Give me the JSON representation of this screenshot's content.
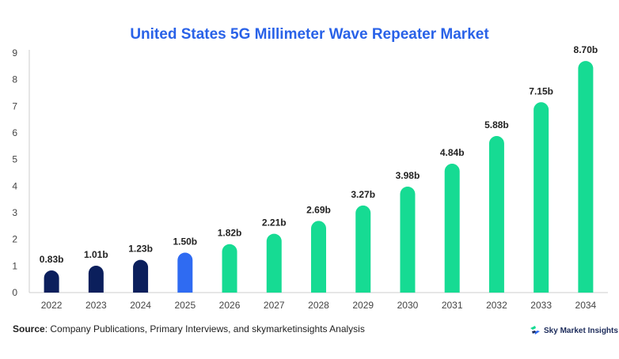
{
  "title": "United States 5G Millimeter Wave Repeater Market",
  "source": {
    "label": "Source",
    "text": ": Company Publications, Primary Interviews, and skymarketinsights Analysis"
  },
  "brand": {
    "name": "Sky Market Insights",
    "icon": "sky-market-insights-logo-icon"
  },
  "colors": {
    "historical": "#0b1f5c",
    "base_year": "#2f6bf2",
    "forecast": "#16db93",
    "title": "#2962e8"
  },
  "chart_data": {
    "type": "bar",
    "title": "United States 5G Millimeter Wave Repeater Market",
    "xlabel": "",
    "ylabel": "",
    "ylim": [
      0,
      9
    ],
    "yticks": [
      "0",
      "1",
      "2",
      "3",
      "4",
      "5",
      "6",
      "7",
      "8",
      "9"
    ],
    "grid": false,
    "categories": [
      "2022",
      "2023",
      "2024",
      "2025",
      "2026",
      "2027",
      "2028",
      "2029",
      "2030",
      "2031",
      "2032",
      "2033",
      "2034"
    ],
    "values": [
      0.83,
      1.01,
      1.23,
      1.5,
      1.82,
      2.21,
      2.69,
      3.27,
      3.98,
      4.84,
      5.88,
      7.15,
      8.7
    ],
    "labels": [
      "0.83b",
      "1.01b",
      "1.23b",
      "1.50b",
      "1.82b",
      "2.21b",
      "2.69b",
      "3.27b",
      "3.98b",
      "4.84b",
      "5.88b",
      "7.15b",
      "8.70b"
    ],
    "bar_colors": [
      "historical",
      "historical",
      "historical",
      "base_year",
      "forecast",
      "forecast",
      "forecast",
      "forecast",
      "forecast",
      "forecast",
      "forecast",
      "forecast",
      "forecast"
    ]
  }
}
